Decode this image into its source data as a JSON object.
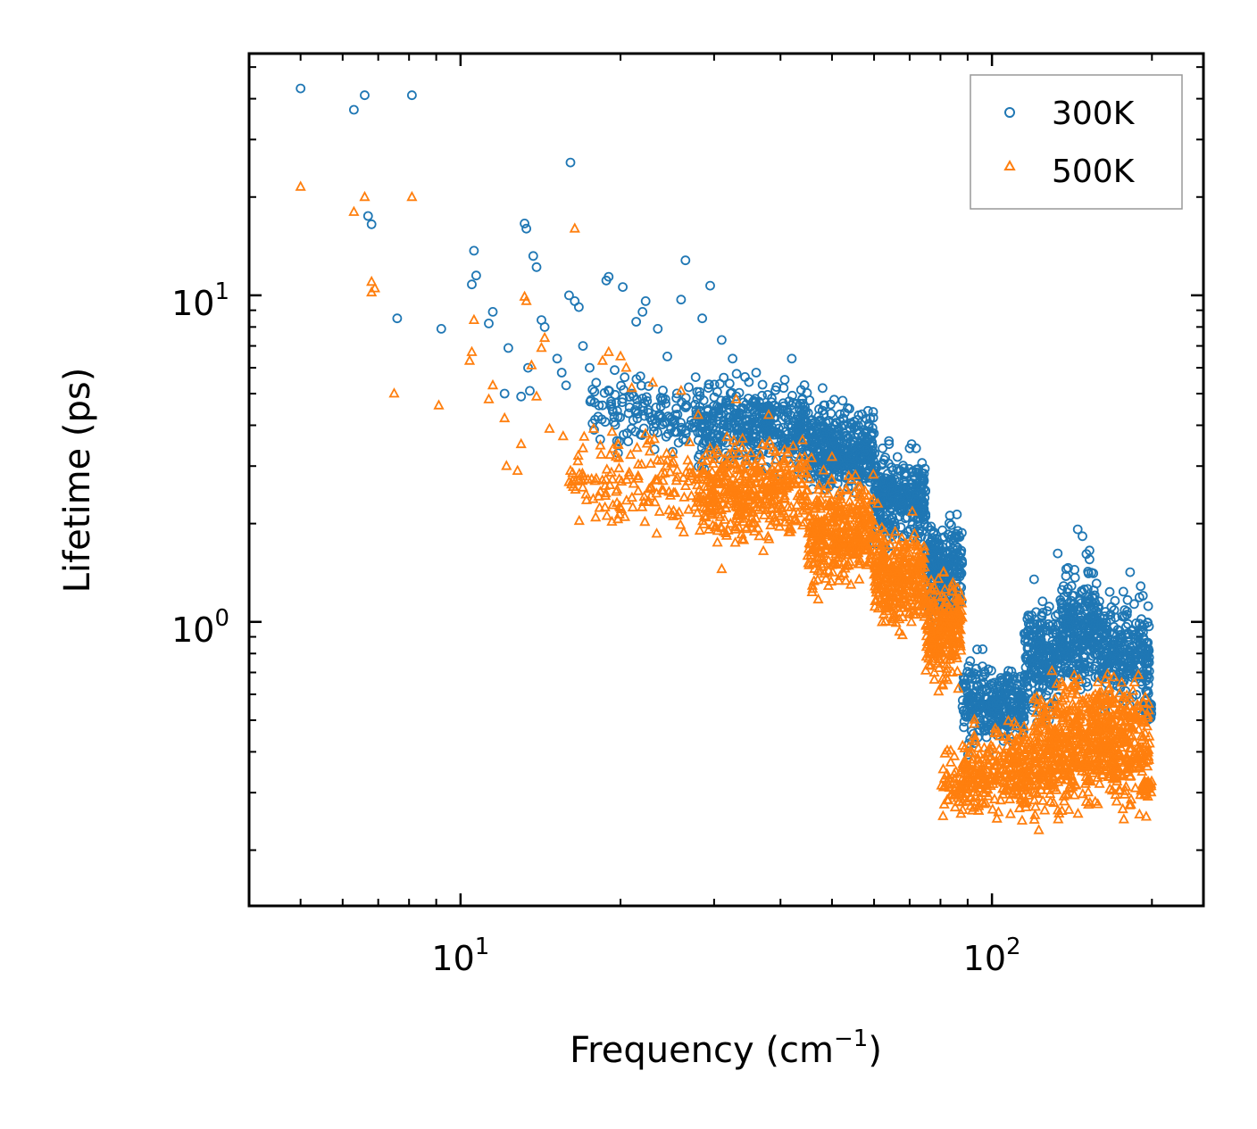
{
  "chart_data": {
    "type": "scatter",
    "xlabel": "Frequency (cm",
    "xlabel_sup": "−1",
    "xlabel_end": ")",
    "ylabel": "Lifetime (ps)",
    "xscale": "log",
    "yscale": "log",
    "xlim": [
      4.0,
      250
    ],
    "ylim": [
      0.135,
      55
    ],
    "x_ticks": [
      {
        "value": 10,
        "base": "10",
        "exp": "1"
      },
      {
        "value": 100,
        "base": "10",
        "exp": "2"
      }
    ],
    "y_ticks": [
      {
        "value": 1,
        "base": "10",
        "exp": "0"
      },
      {
        "value": 10,
        "base": "10",
        "exp": "1"
      }
    ],
    "legend": {
      "position": "top-right"
    },
    "series": [
      {
        "name": "300K",
        "marker": "circle",
        "color": "#1f77b4",
        "points": [
          [
            5.0,
            43
          ],
          [
            6.3,
            37
          ],
          [
            6.6,
            41
          ],
          [
            6.7,
            17.5
          ],
          [
            6.8,
            16.5
          ],
          [
            7.6,
            8.5
          ],
          [
            8.1,
            41
          ],
          [
            9.2,
            7.9
          ],
          [
            10.5,
            10.8
          ],
          [
            10.6,
            13.7
          ],
          [
            10.7,
            11.5
          ],
          [
            11.3,
            8.2
          ],
          [
            11.5,
            8.9
          ],
          [
            12.3,
            6.9
          ],
          [
            12.1,
            5.0
          ],
          [
            13.0,
            4.9
          ],
          [
            13.2,
            16.6
          ],
          [
            13.3,
            16.0
          ],
          [
            13.4,
            6.0
          ],
          [
            13.5,
            5.1
          ],
          [
            13.7,
            13.2
          ],
          [
            13.9,
            12.2
          ],
          [
            14.2,
            8.4
          ],
          [
            14.4,
            8.0
          ],
          [
            15.2,
            6.4
          ],
          [
            15.5,
            5.8
          ],
          [
            15.8,
            5.3
          ],
          [
            16.0,
            10.0
          ],
          [
            16.1,
            25.5
          ],
          [
            16.4,
            9.6
          ],
          [
            16.7,
            9.2
          ],
          [
            17.0,
            7.0
          ],
          [
            17.5,
            6.0
          ],
          [
            18.0,
            5.4
          ],
          [
            18.8,
            11.1
          ],
          [
            19.0,
            11.4
          ],
          [
            19.5,
            5.9
          ],
          [
            20.2,
            10.6
          ],
          [
            21.0,
            5.0
          ],
          [
            21.4,
            8.3
          ],
          [
            22.0,
            8.9
          ],
          [
            22.3,
            9.6
          ],
          [
            23.5,
            7.9
          ],
          [
            24.5,
            6.5
          ],
          [
            26.0,
            9.7
          ],
          [
            26.5,
            12.8
          ],
          [
            28.5,
            8.5
          ],
          [
            29.5,
            10.7
          ],
          [
            31.0,
            7.3
          ],
          [
            32.5,
            6.4
          ],
          [
            36.0,
            5.8
          ],
          [
            42.0,
            6.4
          ],
          [
            48.0,
            5.2
          ],
          [
            56.0,
            4.0
          ],
          [
            64.0,
            3.5
          ],
          [
            70.0,
            3.4
          ],
          [
            72.0,
            3.4
          ],
          [
            120,
            1.35
          ],
          [
            133,
            1.62
          ],
          [
            145,
            1.92
          ],
          [
            148,
            1.83
          ],
          [
            182,
            1.42
          ]
        ],
        "bands": [
          {
            "x": [
              17.5,
              28
            ],
            "y_center": 4.3,
            "spread": 1.25,
            "count": 140
          },
          {
            "x": [
              28,
              45
            ],
            "y_center": 4.0,
            "spread": 1.3,
            "count": 420
          },
          {
            "x": [
              45,
              60
            ],
            "y_center": 3.4,
            "spread": 1.3,
            "count": 380
          },
          {
            "x": [
              60,
              75
            ],
            "y_center": 2.4,
            "spread": 1.3,
            "count": 320
          },
          {
            "x": [
              75,
              88
            ],
            "y_center": 1.45,
            "spread": 1.35,
            "count": 260
          },
          {
            "x": [
              88,
              100
            ],
            "y_center": 0.56,
            "spread": 1.3,
            "count": 140
          },
          {
            "x": [
              100,
              115
            ],
            "y_center": 0.56,
            "spread": 1.25,
            "count": 160
          },
          {
            "x": [
              115,
              135
            ],
            "y_center": 0.78,
            "spread": 1.4,
            "count": 240
          },
          {
            "x": [
              135,
              160
            ],
            "y_center": 0.95,
            "spread": 1.45,
            "count": 280
          },
          {
            "x": [
              160,
              198
            ],
            "y_center": 0.8,
            "spread": 1.4,
            "count": 260
          },
          {
            "x": [
              193,
              200
            ],
            "y_center": 0.54,
            "spread": 1.08,
            "count": 30
          }
        ]
      },
      {
        "name": "500K",
        "marker": "triangle",
        "color": "#ff7f0e",
        "points": [
          [
            5.0,
            21.5
          ],
          [
            6.3,
            18.0
          ],
          [
            6.6,
            20.0
          ],
          [
            6.8,
            11.0
          ],
          [
            6.8,
            10.2
          ],
          [
            6.9,
            10.5
          ],
          [
            7.5,
            5.0
          ],
          [
            8.1,
            20.0
          ],
          [
            9.1,
            4.6
          ],
          [
            10.4,
            6.3
          ],
          [
            10.5,
            6.7
          ],
          [
            10.6,
            8.4
          ],
          [
            11.3,
            4.8
          ],
          [
            11.5,
            5.3
          ],
          [
            12.1,
            4.2
          ],
          [
            12.2,
            3.0
          ],
          [
            12.8,
            2.9
          ],
          [
            13.0,
            3.5
          ],
          [
            13.2,
            9.9
          ],
          [
            13.3,
            9.6
          ],
          [
            13.6,
            6.1
          ],
          [
            13.9,
            4.9
          ],
          [
            14.2,
            6.9
          ],
          [
            14.4,
            7.4
          ],
          [
            14.7,
            3.9
          ],
          [
            15.6,
            3.7
          ],
          [
            16.1,
            2.9
          ],
          [
            16.4,
            16.0
          ],
          [
            17.0,
            3.4
          ],
          [
            17.8,
            3.9
          ],
          [
            18.5,
            6.3
          ],
          [
            19.0,
            6.7
          ],
          [
            20.0,
            6.5
          ],
          [
            20.5,
            6.0
          ],
          [
            21.0,
            5.2
          ],
          [
            23.0,
            5.4
          ],
          [
            26.0,
            5.1
          ],
          [
            28.0,
            4.3
          ],
          [
            31.0,
            1.45
          ],
          [
            33.0,
            4.8
          ],
          [
            38.0,
            4.3
          ],
          [
            44.0,
            3.6
          ],
          [
            50.0,
            3.2
          ],
          [
            56.0,
            2.6
          ],
          [
            61.0,
            2.3
          ]
        ],
        "bands": [
          {
            "x": [
              16,
              28
            ],
            "y_center": 2.7,
            "spread": 1.35,
            "count": 150
          },
          {
            "x": [
              28,
              45
            ],
            "y_center": 2.5,
            "spread": 1.35,
            "count": 420
          },
          {
            "x": [
              45,
              60
            ],
            "y_center": 1.9,
            "spread": 1.4,
            "count": 380
          },
          {
            "x": [
              60,
              75
            ],
            "y_center": 1.35,
            "spread": 1.35,
            "count": 320
          },
          {
            "x": [
              75,
              88
            ],
            "y_center": 0.95,
            "spread": 1.4,
            "count": 260
          },
          {
            "x": [
              80,
              90
            ],
            "y_center": 0.32,
            "spread": 1.2,
            "count": 60
          },
          {
            "x": [
              88,
              100
            ],
            "y_center": 0.34,
            "spread": 1.3,
            "count": 110
          },
          {
            "x": [
              100,
              120
            ],
            "y_center": 0.36,
            "spread": 1.35,
            "count": 180
          },
          {
            "x": [
              120,
              140
            ],
            "y_center": 0.4,
            "spread": 1.5,
            "count": 240
          },
          {
            "x": [
              140,
              165
            ],
            "y_center": 0.44,
            "spread": 1.5,
            "count": 260
          },
          {
            "x": [
              165,
              198
            ],
            "y_center": 0.42,
            "spread": 1.5,
            "count": 240
          },
          {
            "x": [
              193,
              200
            ],
            "y_center": 0.31,
            "spread": 1.06,
            "count": 26
          }
        ]
      }
    ]
  }
}
